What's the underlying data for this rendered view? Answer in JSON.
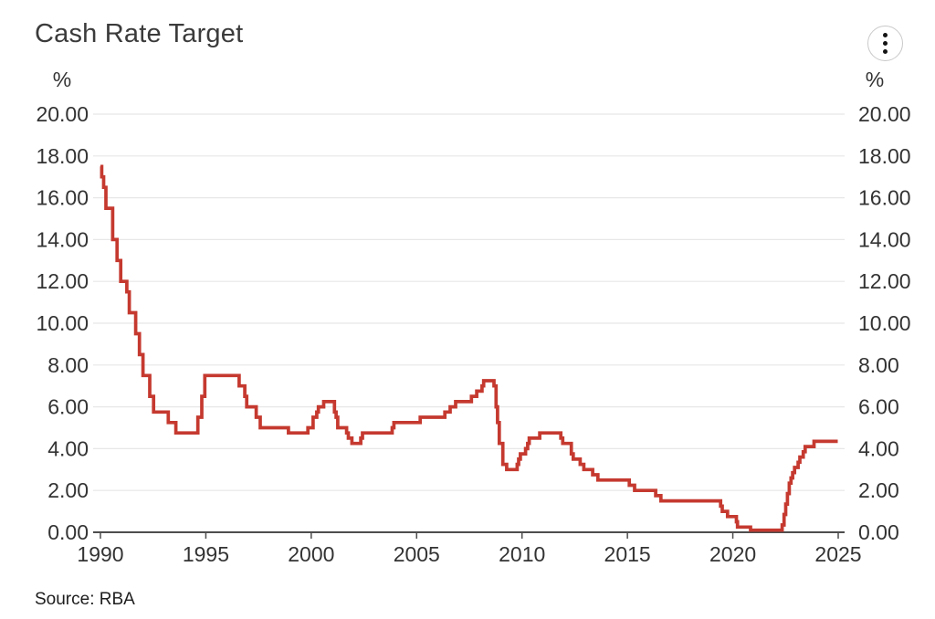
{
  "header": {
    "title": "Cash Rate Target",
    "menu_icon": "kebab-menu-icon"
  },
  "footer": {
    "source": "Source: RBA"
  },
  "chart_data": {
    "type": "line",
    "interpolation": "step-after",
    "title": "Cash Rate Target",
    "xlabel": "",
    "ylabel": "%",
    "unit_label_left": "%",
    "unit_label_right": "%",
    "source": "Source: RBA",
    "grid": true,
    "legend": "none",
    "axis_sides": [
      "left",
      "right"
    ],
    "xlim": [
      1990,
      2025
    ],
    "ylim": [
      0,
      20
    ],
    "x_ticks": [
      1990,
      1995,
      2000,
      2005,
      2010,
      2015,
      2020,
      2025
    ],
    "y_ticks": [
      0,
      2,
      4,
      6,
      8,
      10,
      12,
      14,
      16,
      18,
      20
    ],
    "y_tick_labels": [
      "0.00",
      "2.00",
      "4.00",
      "6.00",
      "8.00",
      "10.00",
      "12.00",
      "14.00",
      "16.00",
      "18.00",
      "20.00"
    ],
    "colors": {
      "line": "#c5392f",
      "grid": "#e7e7e7",
      "axis": "#4d4d4d",
      "tick_text": "#333333"
    },
    "series": [
      {
        "name": "Cash Rate Target",
        "color": "#c5392f",
        "points": [
          [
            1990.0,
            17.5
          ],
          [
            1990.06,
            17.0
          ],
          [
            1990.15,
            16.5
          ],
          [
            1990.26,
            15.5
          ],
          [
            1990.58,
            14.0
          ],
          [
            1990.79,
            13.0
          ],
          [
            1990.96,
            12.0
          ],
          [
            1991.25,
            11.5
          ],
          [
            1991.37,
            10.5
          ],
          [
            1991.67,
            9.5
          ],
          [
            1991.85,
            8.5
          ],
          [
            1992.02,
            7.5
          ],
          [
            1992.34,
            6.5
          ],
          [
            1992.52,
            5.75
          ],
          [
            1993.22,
            5.25
          ],
          [
            1993.58,
            4.75
          ],
          [
            1994.62,
            5.5
          ],
          [
            1994.81,
            6.5
          ],
          [
            1994.95,
            7.5
          ],
          [
            1996.58,
            7.0
          ],
          [
            1996.85,
            6.5
          ],
          [
            1996.94,
            6.0
          ],
          [
            1997.39,
            5.5
          ],
          [
            1997.58,
            5.0
          ],
          [
            1998.92,
            4.75
          ],
          [
            1999.84,
            5.0
          ],
          [
            2000.09,
            5.5
          ],
          [
            2000.26,
            5.75
          ],
          [
            2000.34,
            6.0
          ],
          [
            2000.59,
            6.25
          ],
          [
            2001.1,
            5.75
          ],
          [
            2001.18,
            5.5
          ],
          [
            2001.26,
            5.0
          ],
          [
            2001.68,
            4.75
          ],
          [
            2001.76,
            4.5
          ],
          [
            2001.93,
            4.25
          ],
          [
            2002.35,
            4.5
          ],
          [
            2002.43,
            4.75
          ],
          [
            2003.84,
            5.0
          ],
          [
            2003.92,
            5.25
          ],
          [
            2005.17,
            5.5
          ],
          [
            2006.34,
            5.75
          ],
          [
            2006.59,
            6.0
          ],
          [
            2006.85,
            6.25
          ],
          [
            2007.6,
            6.5
          ],
          [
            2007.85,
            6.75
          ],
          [
            2008.1,
            7.0
          ],
          [
            2008.18,
            7.25
          ],
          [
            2008.67,
            7.0
          ],
          [
            2008.77,
            6.0
          ],
          [
            2008.84,
            5.25
          ],
          [
            2008.92,
            4.25
          ],
          [
            2009.09,
            3.25
          ],
          [
            2009.27,
            3.0
          ],
          [
            2009.77,
            3.25
          ],
          [
            2009.84,
            3.5
          ],
          [
            2009.92,
            3.75
          ],
          [
            2010.17,
            4.0
          ],
          [
            2010.27,
            4.25
          ],
          [
            2010.34,
            4.5
          ],
          [
            2010.84,
            4.75
          ],
          [
            2011.84,
            4.5
          ],
          [
            2011.93,
            4.25
          ],
          [
            2012.34,
            3.75
          ],
          [
            2012.43,
            3.5
          ],
          [
            2012.76,
            3.25
          ],
          [
            2012.93,
            3.0
          ],
          [
            2013.35,
            2.75
          ],
          [
            2013.6,
            2.5
          ],
          [
            2015.09,
            2.25
          ],
          [
            2015.34,
            2.0
          ],
          [
            2016.34,
            1.75
          ],
          [
            2016.59,
            1.5
          ],
          [
            2019.42,
            1.25
          ],
          [
            2019.5,
            1.0
          ],
          [
            2019.75,
            0.75
          ],
          [
            2020.17,
            0.5
          ],
          [
            2020.22,
            0.25
          ],
          [
            2020.84,
            0.1
          ],
          [
            2022.34,
            0.35
          ],
          [
            2022.43,
            0.85
          ],
          [
            2022.51,
            1.35
          ],
          [
            2022.59,
            1.85
          ],
          [
            2022.68,
            2.35
          ],
          [
            2022.76,
            2.6
          ],
          [
            2022.84,
            2.85
          ],
          [
            2022.93,
            3.1
          ],
          [
            2023.1,
            3.35
          ],
          [
            2023.18,
            3.6
          ],
          [
            2023.34,
            3.85
          ],
          [
            2023.43,
            4.1
          ],
          [
            2023.85,
            4.35
          ],
          [
            2024.98,
            4.35
          ]
        ]
      }
    ]
  }
}
